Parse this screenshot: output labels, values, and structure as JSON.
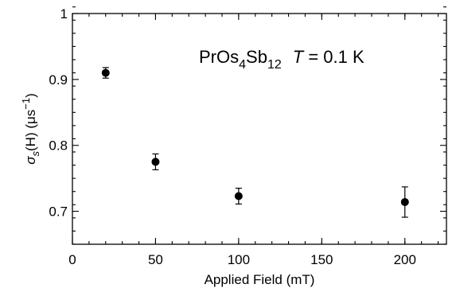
{
  "chart_data": {
    "type": "scatter",
    "xlabel": "Applied Field  (mT)",
    "ylabel": {
      "sym": "σ",
      "sub": "s",
      "rest": "(H)  (μs",
      "sup": "−1",
      "close": ")"
    },
    "annotation": {
      "pre": "PrOs",
      "sub1": "4",
      "mid": "Sb",
      "sub2": "12",
      "italic": "T",
      "rest": " = 0.1 K"
    },
    "xlim": [
      0,
      225
    ],
    "ylim": [
      0.65,
      1.0
    ],
    "xticks": [
      0,
      50,
      100,
      150,
      200
    ],
    "xtick_labels": [
      "0",
      "50",
      "100",
      "150",
      "200"
    ],
    "yticks": [
      0.7,
      0.8,
      0.9,
      1.0
    ],
    "ytick_labels": [
      "0.7",
      "0.8",
      "0.9",
      "1"
    ],
    "x_minor_step": 10,
    "y_minor_step": 0.02,
    "points": [
      {
        "x": 20,
        "y": 0.91,
        "err": 0.008
      },
      {
        "x": 50,
        "y": 0.775,
        "err": 0.012
      },
      {
        "x": 100,
        "y": 0.723,
        "err": 0.012
      },
      {
        "x": 200,
        "y": 0.714,
        "err": 0.023
      }
    ],
    "marker_color": "#000000",
    "grid": false
  }
}
